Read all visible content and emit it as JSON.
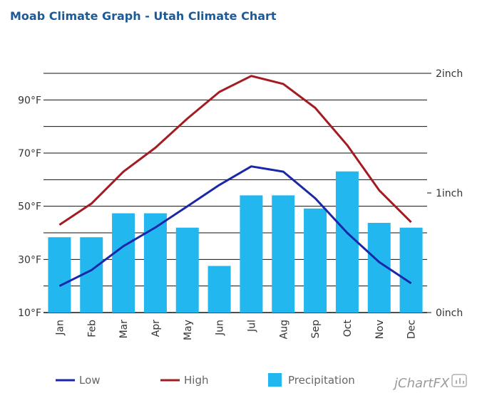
{
  "title": "Moab Climate Graph - Utah Climate Chart",
  "chart_data": {
    "type": "bar",
    "categories": [
      "Jan",
      "Feb",
      "Mar",
      "Apr",
      "May",
      "Jun",
      "Jul",
      "Aug",
      "Sep",
      "Oct",
      "Nov",
      "Dec"
    ],
    "series": [
      {
        "name": "Low",
        "type": "line",
        "axis": "temperature",
        "color": "#1a27a8",
        "values": [
          20,
          26,
          35,
          42,
          50,
          58,
          65,
          63,
          53,
          40,
          29,
          21
        ]
      },
      {
        "name": "High",
        "type": "line",
        "axis": "temperature",
        "color": "#a31c22",
        "values": [
          43,
          51,
          63,
          72,
          83,
          93,
          99,
          96,
          87,
          73,
          56,
          44
        ]
      },
      {
        "name": "Precipitation",
        "type": "bar",
        "axis": "precipitation",
        "color": "#22b8ef",
        "values": [
          0.63,
          0.63,
          0.83,
          0.83,
          0.71,
          0.39,
          0.98,
          0.98,
          0.87,
          1.18,
          0.75,
          0.71
        ]
      }
    ],
    "y_left": {
      "range": [
        10,
        100
      ],
      "ticks": [
        "10°F",
        "30°F",
        "50°F",
        "70°F",
        "90°F"
      ],
      "tick_values": [
        10,
        30,
        50,
        70,
        90
      ]
    },
    "y_right": {
      "range": [
        0,
        2
      ],
      "ticks": [
        "0inch",
        "1inch",
        "2inch"
      ],
      "tick_values": [
        0,
        1,
        2
      ]
    },
    "grid": true,
    "legend_position": "bottom"
  },
  "legend": {
    "low_label": "Low",
    "high_label": "High",
    "precip_label": "Precipitation"
  },
  "brand": "jChartFX"
}
